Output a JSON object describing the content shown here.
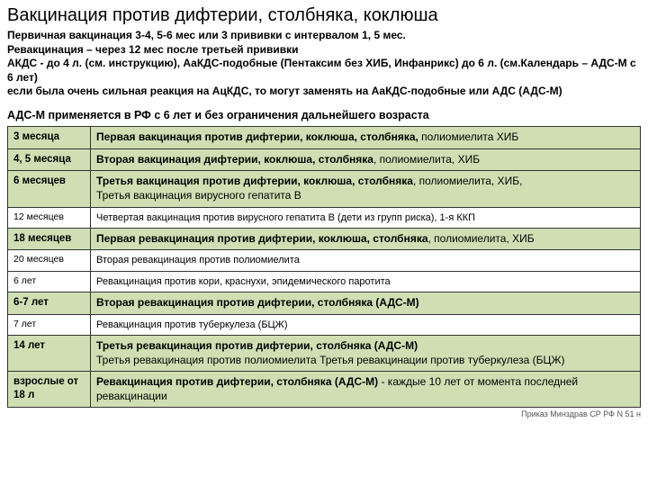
{
  "title": "Вакцинация против дифтерии, столбняка, коклюша",
  "intro_html": "Первичная вакцинация 3-4, 5-6 мес или 3 прививки с интервалом 1, 5 мес.<br>Ревакцинация – через 12 мес после третьей прививки<br>АКДС - до 4 л. (см. инструкцию), АаКДС-подобные (Пентаксим без ХИБ, Инфанрикс) до 6 л. (см.Календарь – АДС-М с 6 лет)<br>если была очень сильная реакция на АцКДС, то могут заменять на АаКДС-подобные или АДС (АДС-М)",
  "subhead": "АДС-М применяется в РФ с 6 лет и без ограничения дальнейшего возраста",
  "colors": {
    "row_green": "#cfdfb3",
    "row_white": "#ffffff",
    "border": "#333333"
  },
  "rows": [
    {
      "cls": "green",
      "age": "3 месяца",
      "age_small": false,
      "desc": "<b>Первая вакцинация против дифтерии, коклюша, столбняка,</b> полиомиелита ХИБ",
      "big": true
    },
    {
      "cls": "green",
      "age": "4, 5 месяца",
      "age_small": false,
      "desc": "<b>Вторая вакцинация дифтерии, коклюша, столбняка</b>, полиомиелита, ХИБ",
      "big": true
    },
    {
      "cls": "green",
      "age": "6 месяцев",
      "age_small": false,
      "desc": "<b>Третья вакцинация против дифтерии, коклюша, столбняка</b>, полиомиелита, ХИБ,<br>Третья вакцинация вирусного гепатита В",
      "big": true
    },
    {
      "cls": "white",
      "age": "12 месяцев",
      "age_small": true,
      "desc": "Четвертая вакцинация против вирусного гепатита В (дети из групп риска), 1-я ККП",
      "big": false
    },
    {
      "cls": "green",
      "age": "18 месяцев",
      "age_small": false,
      "desc": "<b>Первая ревакцинация против дифтерии, коклюша, столбняка</b>, полиомиелита, ХИБ",
      "big": true
    },
    {
      "cls": "white",
      "age": "20 месяцев",
      "age_small": true,
      "desc": "Вторая ревакцинация против полиомиелита",
      "big": false
    },
    {
      "cls": "white",
      "age": "6 лет",
      "age_small": true,
      "desc": "Ревакцинация против кори, краснухи, эпидемического паротита",
      "big": false
    },
    {
      "cls": "green",
      "age": "6-7 лет",
      "age_small": false,
      "desc": "<b>Вторая ревакцинация против дифтерии,  столбняка (АДС-М)</b>",
      "big": true
    },
    {
      "cls": "white",
      "age": "7 лет",
      "age_small": true,
      "desc": "Ревакцинация против туберкулеза (БЦЖ)",
      "big": false
    },
    {
      "cls": "green",
      "age": "14 лет",
      "age_small": false,
      "desc": "<b>Третья ревакцинация против дифтерии, столбняка (АДС-М)</b><br>Третья ревакцинация против полиомиелита Третья ревакцинации против туберкулеза (БЦЖ)",
      "big": true
    },
    {
      "cls": "green",
      "age": "взрослые от 18 л",
      "age_small": false,
      "desc": "<b>Ревакцинация против дифтерии, столбняка (АДС-М)</b> - каждые 10 лет от момента последней ревакцинации",
      "big": true
    }
  ],
  "footnote": "Приказ Минздрав СР РФ N  51 н"
}
